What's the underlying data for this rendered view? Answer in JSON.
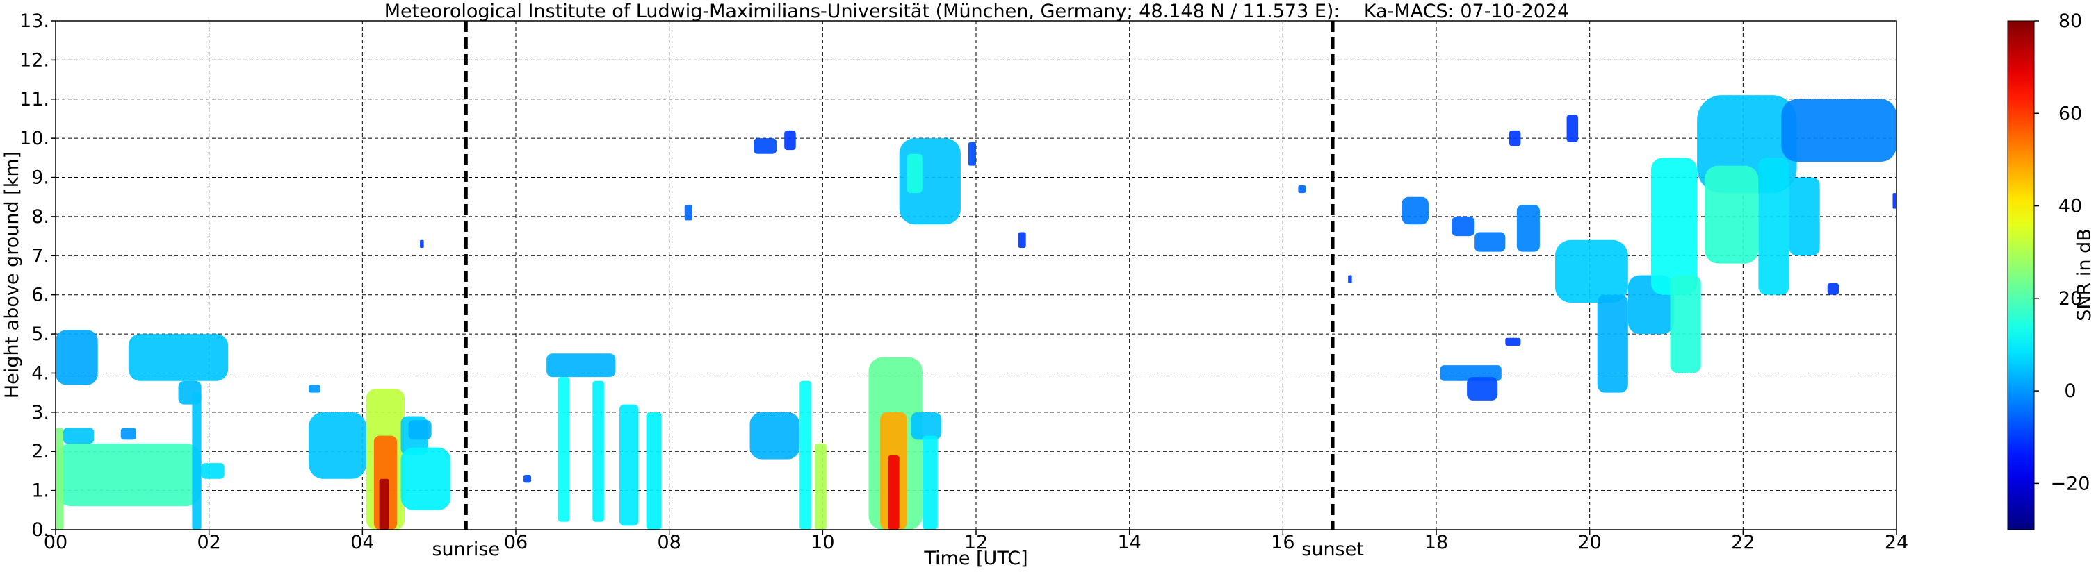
{
  "chart_data": {
    "type": "heatmap",
    "title": "Meteorological Institute of Ludwig-Maximilians-Universität (München, Germany; 48.148 N / 11.573 E):    Ka-MACS: 07-10-2024",
    "xlabel": "Time [UTC]",
    "ylabel": "Height above ground [km]",
    "xlim": [
      0,
      24
    ],
    "ylim": [
      0,
      13
    ],
    "x_ticks": [
      0,
      2,
      4,
      6,
      8,
      10,
      12,
      14,
      16,
      18,
      20,
      22,
      24
    ],
    "x_tick_labels": [
      "00",
      "02",
      "04",
      "06",
      "08",
      "10",
      "12",
      "14",
      "16",
      "18",
      "20",
      "22",
      "24"
    ],
    "y_ticks": [
      0,
      1,
      2,
      3,
      4,
      5,
      6,
      7,
      8,
      9,
      10,
      11,
      12,
      13
    ],
    "y_tick_labels": [
      "0.",
      "1.",
      "2.",
      "3.",
      "4.",
      "5.",
      "6.",
      "7.",
      "8.",
      "9.",
      "10.",
      "11.",
      "12.",
      "13."
    ],
    "grid": true,
    "colorbar": {
      "label": "SNR in dB",
      "range": [
        -30,
        80
      ],
      "ticks": [
        -20,
        0,
        20,
        40,
        60,
        80
      ],
      "tick_labels": [
        "−20",
        "0",
        "20",
        "40",
        "60",
        "80"
      ],
      "colormap": "jet"
    },
    "vlines": [
      {
        "x": 5.35,
        "label": "sunrise"
      },
      {
        "x": 16.65,
        "label": "sunset"
      }
    ],
    "echo_regions": [
      {
        "t": [
          0.0,
          1.9
        ],
        "h": [
          0.6,
          2.2
        ],
        "snr": 18
      },
      {
        "t": [
          1.9,
          2.2
        ],
        "h": [
          1.3,
          1.7
        ],
        "snr": 8
      },
      {
        "t": [
          0.1,
          0.5
        ],
        "h": [
          2.2,
          2.6
        ],
        "snr": 5
      },
      {
        "t": [
          0.85,
          1.05
        ],
        "h": [
          2.3,
          2.6
        ],
        "snr": 0
      },
      {
        "t": [
          0.0,
          0.55
        ],
        "h": [
          3.7,
          5.1
        ],
        "snr": 2
      },
      {
        "t": [
          0.95,
          2.25
        ],
        "h": [
          3.8,
          5.0
        ],
        "snr": 5
      },
      {
        "t": [
          1.6,
          1.9
        ],
        "h": [
          3.2,
          3.8
        ],
        "snr": 4
      },
      {
        "t": [
          0.0,
          0.1
        ],
        "h": [
          0.0,
          2.6
        ],
        "snr": 25
      },
      {
        "t": [
          1.78,
          1.9
        ],
        "h": [
          0.0,
          3.5
        ],
        "snr": 5
      },
      {
        "t": [
          3.3,
          3.45
        ],
        "h": [
          3.5,
          3.7
        ],
        "snr": 0
      },
      {
        "t": [
          3.3,
          4.05
        ],
        "h": [
          1.3,
          3.0
        ],
        "snr": 5
      },
      {
        "t": [
          4.05,
          4.55
        ],
        "h": [
          0.0,
          3.6
        ],
        "snr": 32
      },
      {
        "t": [
          4.15,
          4.45
        ],
        "h": [
          0.0,
          2.4
        ],
        "snr": 55
      },
      {
        "t": [
          4.22,
          4.35
        ],
        "h": [
          0.0,
          1.3
        ],
        "snr": 76
      },
      {
        "t": [
          4.5,
          4.85
        ],
        "h": [
          1.9,
          2.9
        ],
        "snr": 6
      },
      {
        "t": [
          4.5,
          5.15
        ],
        "h": [
          0.5,
          2.1
        ],
        "snr": 10
      },
      {
        "t": [
          4.6,
          4.9
        ],
        "h": [
          2.3,
          2.8
        ],
        "snr": 3
      },
      {
        "t": [
          4.75,
          4.8
        ],
        "h": [
          7.2,
          7.4
        ],
        "snr": -10
      },
      {
        "t": [
          6.4,
          7.3
        ],
        "h": [
          3.9,
          4.5
        ],
        "snr": 3
      },
      {
        "t": [
          6.55,
          6.7
        ],
        "h": [
          0.2,
          3.9
        ],
        "snr": 12
      },
      {
        "t": [
          7.0,
          7.15
        ],
        "h": [
          0.2,
          3.8
        ],
        "snr": 10
      },
      {
        "t": [
          7.35,
          7.6
        ],
        "h": [
          0.1,
          3.2
        ],
        "snr": 9
      },
      {
        "t": [
          7.7,
          7.9
        ],
        "h": [
          0.0,
          3.0
        ],
        "snr": 10
      },
      {
        "t": [
          6.1,
          6.2
        ],
        "h": [
          1.2,
          1.4
        ],
        "snr": -8
      },
      {
        "t": [
          8.2,
          8.3
        ],
        "h": [
          7.9,
          8.3
        ],
        "snr": -5
      },
      {
        "t": [
          9.1,
          9.4
        ],
        "h": [
          9.6,
          10.0
        ],
        "snr": -8
      },
      {
        "t": [
          9.5,
          9.65
        ],
        "h": [
          9.7,
          10.2
        ],
        "snr": -10
      },
      {
        "t": [
          9.05,
          9.7
        ],
        "h": [
          1.8,
          3.0
        ],
        "snr": 3
      },
      {
        "t": [
          9.7,
          9.85
        ],
        "h": [
          0.0,
          3.8
        ],
        "snr": 12
      },
      {
        "t": [
          9.9,
          10.05
        ],
        "h": [
          0.0,
          2.2
        ],
        "snr": 30
      },
      {
        "t": [
          10.6,
          11.3
        ],
        "h": [
          0.0,
          4.4
        ],
        "snr": 22
      },
      {
        "t": [
          10.75,
          11.1
        ],
        "h": [
          0.0,
          3.0
        ],
        "snr": 48
      },
      {
        "t": [
          10.85,
          11.0
        ],
        "h": [
          0.0,
          1.9
        ],
        "snr": 68
      },
      {
        "t": [
          11.15,
          11.55
        ],
        "h": [
          2.3,
          3.0
        ],
        "snr": 5
      },
      {
        "t": [
          11.3,
          11.5
        ],
        "h": [
          0.0,
          2.4
        ],
        "snr": 10
      },
      {
        "t": [
          11.0,
          11.8
        ],
        "h": [
          7.8,
          10.0
        ],
        "snr": 5
      },
      {
        "t": [
          11.1,
          11.3
        ],
        "h": [
          8.6,
          9.6
        ],
        "snr": 14
      },
      {
        "t": [
          11.9,
          12.0
        ],
        "h": [
          9.3,
          9.9
        ],
        "snr": -8
      },
      {
        "t": [
          12.55,
          12.65
        ],
        "h": [
          7.2,
          7.6
        ],
        "snr": -10
      },
      {
        "t": [
          16.2,
          16.3
        ],
        "h": [
          8.6,
          8.8
        ],
        "snr": -5
      },
      {
        "t": [
          17.55,
          17.9
        ],
        "h": [
          7.8,
          8.5
        ],
        "snr": -3
      },
      {
        "t": [
          16.85,
          16.9
        ],
        "h": [
          6.3,
          6.5
        ],
        "snr": -10
      },
      {
        "t": [
          18.05,
          18.85
        ],
        "h": [
          3.8,
          4.2
        ],
        "snr": -2
      },
      {
        "t": [
          18.4,
          18.8
        ],
        "h": [
          3.3,
          3.9
        ],
        "snr": -8
      },
      {
        "t": [
          18.9,
          19.1
        ],
        "h": [
          4.7,
          4.9
        ],
        "snr": -10
      },
      {
        "t": [
          18.2,
          18.5
        ],
        "h": [
          7.5,
          8.0
        ],
        "snr": -5
      },
      {
        "t": [
          18.5,
          18.9
        ],
        "h": [
          7.1,
          7.6
        ],
        "snr": -3
      },
      {
        "t": [
          19.05,
          19.35
        ],
        "h": [
          7.1,
          8.3
        ],
        "snr": -2
      },
      {
        "t": [
          18.95,
          19.1
        ],
        "h": [
          9.8,
          10.2
        ],
        "snr": -10
      },
      {
        "t": [
          19.7,
          19.85
        ],
        "h": [
          9.9,
          10.6
        ],
        "snr": -10
      },
      {
        "t": [
          19.55,
          20.5
        ],
        "h": [
          5.8,
          7.4
        ],
        "snr": 6
      },
      {
        "t": [
          20.1,
          20.5
        ],
        "h": [
          3.5,
          6.0
        ],
        "snr": 3
      },
      {
        "t": [
          20.5,
          21.1
        ],
        "h": [
          5.0,
          6.5
        ],
        "snr": 4
      },
      {
        "t": [
          20.8,
          21.4
        ],
        "h": [
          6.0,
          9.5
        ],
        "snr": 12
      },
      {
        "t": [
          21.05,
          21.45
        ],
        "h": [
          4.0,
          6.5
        ],
        "snr": 15
      },
      {
        "t": [
          21.4,
          22.7
        ],
        "h": [
          8.6,
          11.1
        ],
        "snr": 5
      },
      {
        "t": [
          21.5,
          22.2
        ],
        "h": [
          6.8,
          9.3
        ],
        "snr": 16
      },
      {
        "t": [
          22.2,
          22.6
        ],
        "h": [
          6.0,
          9.5
        ],
        "snr": 8
      },
      {
        "t": [
          22.6,
          23.0
        ],
        "h": [
          7.0,
          9.0
        ],
        "snr": 6
      },
      {
        "t": [
          22.5,
          24.0
        ],
        "h": [
          9.4,
          11.0
        ],
        "snr": -2
      },
      {
        "t": [
          23.1,
          23.25
        ],
        "h": [
          6.0,
          6.3
        ],
        "snr": -10
      },
      {
        "t": [
          23.95,
          24.0
        ],
        "h": [
          8.2,
          8.6
        ],
        "snr": -10
      }
    ]
  }
}
